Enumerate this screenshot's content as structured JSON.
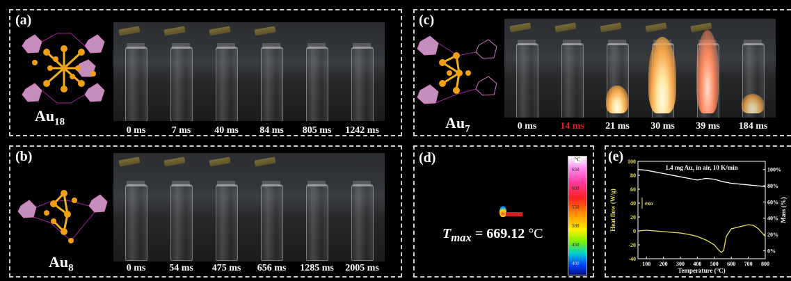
{
  "panels": {
    "a": {
      "label": "(a)",
      "formula_base": "Au",
      "formula_sub": "18",
      "times": [
        "0 ms",
        "7 ms",
        "40 ms",
        "84 ms",
        "805 ms",
        "1242 ms"
      ]
    },
    "b": {
      "label": "(b)",
      "formula_base": "Au",
      "formula_sub": "8",
      "times": [
        "0 ms",
        "54 ms",
        "475 ms",
        "656 ms",
        "1285 ms",
        "2005 ms"
      ]
    },
    "c": {
      "label": "(c)",
      "formula_base": "Au",
      "formula_sub": "7",
      "times": [
        "0 ms",
        "14 ms",
        "21 ms",
        "30 ms",
        "39 ms",
        "184 ms"
      ],
      "highlight_color": "#e02020",
      "highlight_index": 1
    },
    "d": {
      "label": "(d)",
      "tmax_symbol": "T",
      "tmax_sub": "max",
      "tmax_value": "= 669.12",
      "tmax_unit": "°C",
      "colorbar_unit": "°C",
      "colorbar_ticks": [
        "650",
        "600",
        "550",
        "500",
        "450",
        "400"
      ]
    },
    "e": {
      "label": "(e)"
    }
  },
  "chart_data": {
    "type": "line",
    "title": "1.4 mg Au7 in air,  10 K/min",
    "title_parts": {
      "before_sub": "1.4 mg Au",
      "sub": "7",
      "after_sub": " in air,  10 K/min"
    },
    "xlabel": "Temperature (°C)",
    "ylabel_left": "Heat flow (W/g)",
    "ylabel_right": "Mass (%)",
    "annotation": "exo",
    "xlim": [
      50,
      800
    ],
    "ylim_left": [
      -40,
      100
    ],
    "ylim_right": [
      -10,
      110
    ],
    "x_ticks": [
      100,
      200,
      300,
      400,
      500,
      600,
      700,
      800
    ],
    "y_ticks_left": [
      -40,
      -20,
      0,
      20,
      40,
      60,
      80,
      100
    ],
    "y_ticks_right": [
      0,
      20,
      40,
      60,
      80,
      100
    ],
    "y_ticks_right_labels": [
      "0%",
      "20%",
      "40%",
      "60%",
      "80%",
      "100%"
    ],
    "series": [
      {
        "axis": "right",
        "color": "#ffffff",
        "x": [
          50,
          100,
          150,
          200,
          250,
          300,
          350,
          400,
          450,
          500,
          550,
          600,
          650,
          700,
          750,
          800
        ],
        "values": [
          100,
          99,
          97,
          95,
          93,
          91,
          89,
          87,
          89,
          88,
          85,
          83,
          82,
          81,
          80,
          79
        ]
      },
      {
        "axis": "left",
        "color": "#e8e060",
        "x": [
          50,
          100,
          150,
          200,
          250,
          300,
          350,
          400,
          450,
          500,
          520,
          540,
          555,
          570,
          600,
          650,
          700,
          730,
          760,
          800
        ],
        "values": [
          0,
          1,
          0,
          -1,
          -2,
          -3,
          -5,
          -8,
          -13,
          -20,
          -26,
          -31,
          -28,
          -8,
          3,
          6,
          9,
          8,
          3,
          -8
        ]
      }
    ]
  }
}
